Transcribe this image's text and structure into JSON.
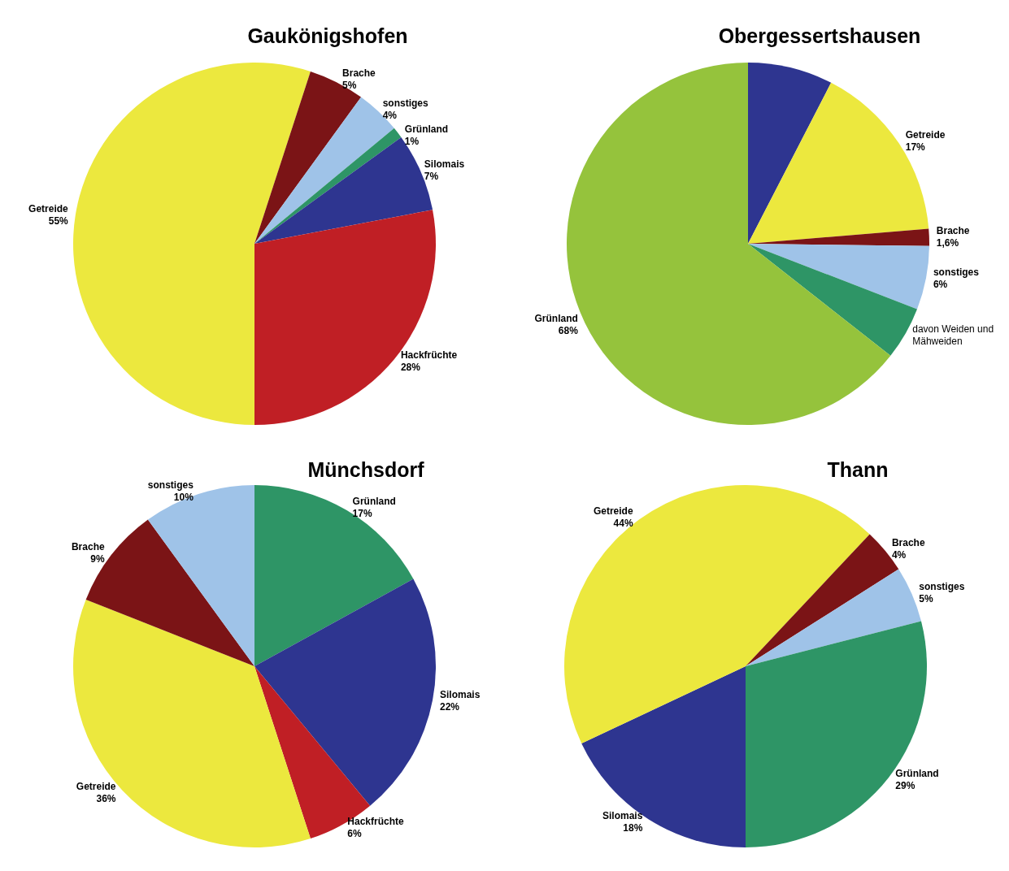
{
  "chart_data": [
    {
      "type": "pie",
      "title": "Gaukönigshofen",
      "categories": [
        "Getreide",
        "Brache",
        "sonstiges",
        "Grünland",
        "Silomais",
        "Hackfrüchte"
      ],
      "values": [
        55,
        5,
        4,
        1,
        7,
        28
      ],
      "value_labels": [
        "55%",
        "5%",
        "4%",
        "1%",
        "7%",
        "28%"
      ],
      "colors": [
        "#ece83e",
        "#7b1416",
        "#9fc3e8",
        "#2e9566",
        "#2e3590",
        "#c01f25"
      ]
    },
    {
      "type": "pie",
      "title": "Obergessertshausen",
      "categories": [
        null,
        "Getreide",
        "Brache",
        "sonstiges",
        "davon Weiden und Mähweiden",
        "Grünland"
      ],
      "values": [
        8,
        17,
        1.6,
        6,
        5,
        68
      ],
      "value_labels": [
        null,
        "17%",
        "1,6%",
        "6%",
        null,
        "68%"
      ],
      "colors": [
        "#2e3590",
        "#ece83e",
        "#7b1416",
        "#9fc3e8",
        "#2e9566",
        "#95c33c"
      ]
    },
    {
      "type": "pie",
      "title": "Münchsdorf",
      "categories": [
        "Grünland",
        "Silomais",
        "Hackfrüchte",
        "Getreide",
        "Brache",
        "sonstiges"
      ],
      "values": [
        17,
        22,
        6,
        36,
        9,
        10
      ],
      "value_labels": [
        "17%",
        "22%",
        "6%",
        "36%",
        "9%",
        "10%"
      ],
      "colors": [
        "#2e9566",
        "#2e3590",
        "#c01f25",
        "#ece83e",
        "#7b1416",
        "#9fc3e8"
      ]
    },
    {
      "type": "pie",
      "title": "Thann",
      "categories": [
        "Silomais",
        "Getreide",
        "Brache",
        "sonstiges",
        "Grünland"
      ],
      "values": [
        18,
        44,
        4,
        5,
        29
      ],
      "value_labels": [
        "18%",
        "44%",
        "4%",
        "5%",
        "29%"
      ],
      "colors": [
        "#2e3590",
        "#ece83e",
        "#7b1416",
        "#9fc3e8",
        "#2e9566"
      ]
    }
  ]
}
